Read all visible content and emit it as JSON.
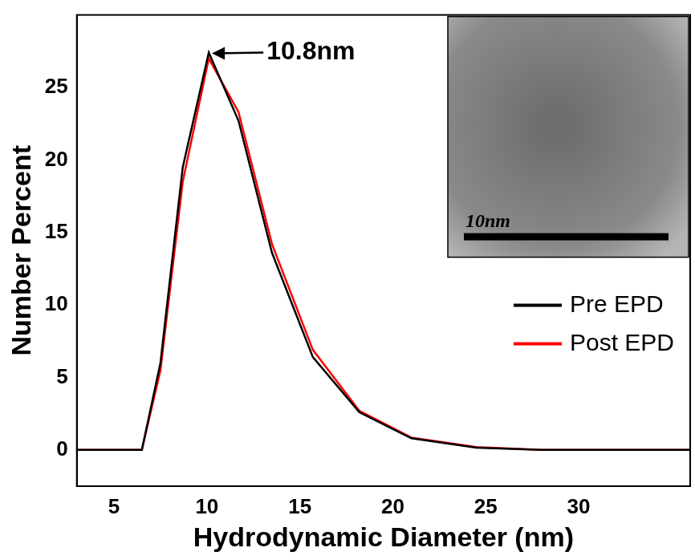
{
  "chart_data": {
    "type": "line",
    "x_label": "Hydrodynamic Diameter (nm)",
    "y_label": "Number Percent",
    "xlim": [
      3,
      36
    ],
    "xticks": [
      5,
      10,
      15,
      20,
      25,
      30
    ],
    "ylim": [
      -2.5,
      30
    ],
    "yticks": [
      0,
      5,
      10,
      15,
      20,
      25
    ],
    "grid": false,
    "legend": "right",
    "series": [
      {
        "name": "Pre EPD",
        "color": "#000000",
        "x": [
          3,
          6.5,
          7.5,
          8.7,
          10.1,
          11.7,
          13.5,
          15.7,
          18.2,
          21,
          24.5,
          28,
          36
        ],
        "values": [
          0,
          0,
          6,
          19.5,
          27.4,
          22.7,
          13.6,
          6.4,
          2.6,
          0.8,
          0.15,
          0,
          0
        ]
      },
      {
        "name": "Post EPD",
        "color": "#ff0000",
        "x": [
          3,
          6.5,
          7.5,
          8.7,
          10.1,
          11.7,
          13.5,
          15.7,
          18.2,
          21,
          24.5,
          28,
          36
        ],
        "values": [
          0,
          0,
          5.5,
          18.5,
          27,
          23.3,
          14.2,
          6.9,
          2.7,
          0.85,
          0.2,
          0,
          0
        ]
      }
    ],
    "annotations": [
      {
        "text": "10.8nm",
        "x": 10.1,
        "y": 27.4
      }
    ],
    "inset": {
      "label": "10nm"
    }
  }
}
